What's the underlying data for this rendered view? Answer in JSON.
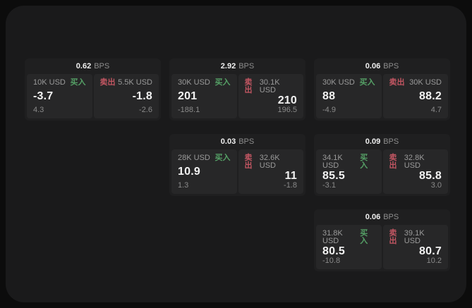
{
  "labels": {
    "bps_unit": "BPS",
    "buy": "买入",
    "sell": "卖出"
  },
  "colors": {
    "page_background": "#0c0c0c",
    "panel_background": "#1a1a1b",
    "card_background": "#1f1f20",
    "tile_background": "#272728",
    "buy_green": "#55a066",
    "sell_red": "#c25662",
    "text_primary": "#f2f2f2",
    "text_muted": "#8e8e8e"
  },
  "cards": [
    {
      "bps": "0.62",
      "buy": {
        "size": "10K USD",
        "price": "-3.7",
        "change": "4.3"
      },
      "sell": {
        "size": "5.5K USD",
        "price": "-1.8",
        "change": "-2.6"
      }
    },
    {
      "bps": "2.92",
      "buy": {
        "size": "30K USD",
        "price": "201",
        "change": "-188.1"
      },
      "sell": {
        "size": "30.1K USD",
        "price": "210",
        "change": "196.5"
      }
    },
    {
      "bps": "0.06",
      "buy": {
        "size": "30K USD",
        "price": "88",
        "change": "-4.9"
      },
      "sell": {
        "size": "30K USD",
        "price": "88.2",
        "change": "4.7"
      }
    },
    {
      "bps": "0.03",
      "buy": {
        "size": "28K USD",
        "price": "10.9",
        "change": "1.3"
      },
      "sell": {
        "size": "32.6K USD",
        "price": "11",
        "change": "-1.8"
      }
    },
    {
      "bps": "0.09",
      "buy": {
        "size": "34.1K USD",
        "price": "85.5",
        "change": "-3.1"
      },
      "sell": {
        "size": "32.8K USD",
        "price": "85.8",
        "change": "3.0"
      }
    },
    {
      "bps": "0.06",
      "buy": {
        "size": "31.8K USD",
        "price": "80.5",
        "change": "-10.8"
      },
      "sell": {
        "size": "39.1K USD",
        "price": "80.7",
        "change": "10.2"
      }
    }
  ]
}
